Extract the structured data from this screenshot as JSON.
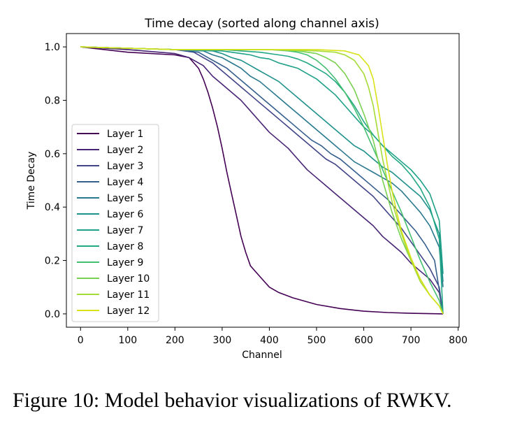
{
  "caption": "Figure 10: Model behavior visualizations of RWKV.",
  "chart_data": {
    "type": "line",
    "title": "Time decay (sorted along channel axis)",
    "xlabel": "Channel",
    "ylabel": "Time Decay",
    "xlim": [
      -30,
      802
    ],
    "ylim": [
      -0.05,
      1.05
    ],
    "xticks": [
      0,
      100,
      200,
      300,
      400,
      500,
      600,
      700,
      800
    ],
    "yticks": [
      0.0,
      0.2,
      0.4,
      0.6,
      0.8,
      1.0
    ],
    "grid": false,
    "legend_position": "center-left",
    "series": [
      {
        "name": "Layer 1",
        "color": "#440154",
        "x": [
          0,
          100,
          200,
          230,
          250,
          260,
          270,
          280,
          290,
          300,
          310,
          320,
          330,
          340,
          350,
          360,
          380,
          400,
          420,
          450,
          500,
          550,
          600,
          650,
          700,
          768
        ],
        "y": [
          1.0,
          0.98,
          0.97,
          0.96,
          0.92,
          0.88,
          0.83,
          0.77,
          0.7,
          0.62,
          0.53,
          0.45,
          0.37,
          0.29,
          0.23,
          0.18,
          0.14,
          0.1,
          0.08,
          0.06,
          0.035,
          0.02,
          0.01,
          0.005,
          0.002,
          0.0
        ]
      },
      {
        "name": "Layer 2",
        "color": "#482475",
        "x": [
          0,
          100,
          200,
          230,
          260,
          280,
          300,
          320,
          340,
          360,
          380,
          400,
          420,
          440,
          460,
          480,
          500,
          520,
          540,
          560,
          580,
          600,
          620,
          640,
          660,
          680,
          700,
          720,
          740,
          760,
          768
        ],
        "y": [
          1.0,
          0.99,
          0.975,
          0.96,
          0.93,
          0.89,
          0.86,
          0.83,
          0.8,
          0.76,
          0.72,
          0.68,
          0.65,
          0.62,
          0.58,
          0.54,
          0.51,
          0.48,
          0.45,
          0.42,
          0.39,
          0.36,
          0.33,
          0.29,
          0.26,
          0.23,
          0.19,
          0.16,
          0.13,
          0.08,
          0.0
        ]
      },
      {
        "name": "Layer 3",
        "color": "#414487",
        "x": [
          0,
          100,
          200,
          240,
          260,
          280,
          300,
          320,
          340,
          360,
          380,
          400,
          420,
          440,
          460,
          480,
          500,
          520,
          540,
          560,
          580,
          600,
          620,
          640,
          660,
          680,
          700,
          720,
          740,
          760,
          768
        ],
        "y": [
          1.0,
          0.995,
          0.99,
          0.98,
          0.96,
          0.94,
          0.91,
          0.88,
          0.85,
          0.82,
          0.79,
          0.76,
          0.73,
          0.7,
          0.67,
          0.64,
          0.61,
          0.58,
          0.56,
          0.53,
          0.5,
          0.47,
          0.44,
          0.4,
          0.36,
          0.32,
          0.27,
          0.22,
          0.17,
          0.1,
          0.0
        ]
      },
      {
        "name": "Layer 4",
        "color": "#355f8d",
        "x": [
          0,
          100,
          200,
          250,
          270,
          290,
          310,
          330,
          350,
          370,
          390,
          410,
          430,
          450,
          470,
          490,
          510,
          530,
          550,
          570,
          590,
          610,
          630,
          650,
          670,
          690,
          710,
          730,
          750,
          768
        ],
        "y": [
          1.0,
          0.995,
          0.99,
          0.98,
          0.96,
          0.94,
          0.92,
          0.89,
          0.86,
          0.83,
          0.8,
          0.77,
          0.74,
          0.71,
          0.68,
          0.65,
          0.63,
          0.6,
          0.58,
          0.55,
          0.52,
          0.49,
          0.46,
          0.43,
          0.39,
          0.35,
          0.31,
          0.26,
          0.2,
          0.0
        ]
      },
      {
        "name": "Layer 5",
        "color": "#2a788e",
        "x": [
          0,
          100,
          200,
          260,
          280,
          300,
          320,
          340,
          360,
          380,
          400,
          420,
          440,
          460,
          480,
          500,
          520,
          540,
          560,
          580,
          600,
          620,
          640,
          660,
          680,
          700,
          720,
          740,
          760,
          768
        ],
        "y": [
          1.0,
          0.995,
          0.99,
          0.985,
          0.97,
          0.96,
          0.94,
          0.92,
          0.89,
          0.87,
          0.84,
          0.81,
          0.78,
          0.75,
          0.72,
          0.69,
          0.66,
          0.63,
          0.6,
          0.57,
          0.55,
          0.53,
          0.51,
          0.49,
          0.46,
          0.42,
          0.38,
          0.33,
          0.25,
          0.1
        ]
      },
      {
        "name": "Layer 6",
        "color": "#21918c",
        "x": [
          0,
          100,
          200,
          280,
          300,
          320,
          340,
          360,
          380,
          400,
          420,
          440,
          460,
          480,
          500,
          520,
          540,
          560,
          580,
          600,
          620,
          640,
          660,
          680,
          700,
          720,
          740,
          760,
          768
        ],
        "y": [
          1.0,
          0.995,
          0.99,
          0.985,
          0.975,
          0.96,
          0.95,
          0.93,
          0.91,
          0.89,
          0.87,
          0.84,
          0.81,
          0.78,
          0.75,
          0.72,
          0.69,
          0.66,
          0.63,
          0.61,
          0.58,
          0.55,
          0.53,
          0.5,
          0.47,
          0.44,
          0.39,
          0.3,
          0.12
        ]
      },
      {
        "name": "Layer 7",
        "color": "#1fa088",
        "x": [
          0,
          100,
          200,
          300,
          320,
          340,
          360,
          380,
          400,
          420,
          440,
          460,
          480,
          500,
          520,
          540,
          560,
          580,
          600,
          620,
          640,
          660,
          680,
          700,
          720,
          740,
          760,
          768
        ],
        "y": [
          1.0,
          0.995,
          0.99,
          0.985,
          0.98,
          0.975,
          0.97,
          0.96,
          0.955,
          0.94,
          0.93,
          0.92,
          0.9,
          0.88,
          0.85,
          0.82,
          0.78,
          0.74,
          0.7,
          0.67,
          0.63,
          0.6,
          0.57,
          0.54,
          0.5,
          0.45,
          0.35,
          0.15
        ]
      },
      {
        "name": "Layer 8",
        "color": "#22a884",
        "x": [
          0,
          100,
          200,
          300,
          340,
          380,
          420,
          440,
          460,
          480,
          500,
          520,
          540,
          560,
          580,
          600,
          620,
          640,
          660,
          680,
          700,
          720,
          740,
          760,
          768
        ],
        "y": [
          1.0,
          0.995,
          0.99,
          0.99,
          0.985,
          0.98,
          0.97,
          0.965,
          0.955,
          0.94,
          0.92,
          0.9,
          0.87,
          0.83,
          0.78,
          0.72,
          0.67,
          0.63,
          0.59,
          0.56,
          0.52,
          0.47,
          0.4,
          0.28,
          0.0
        ]
      },
      {
        "name": "Layer 9",
        "color": "#44bf70",
        "x": [
          0,
          100,
          200,
          300,
          400,
          440,
          460,
          480,
          500,
          520,
          540,
          560,
          580,
          600,
          610,
          620,
          630,
          640,
          650,
          660,
          680,
          700,
          720,
          740,
          760,
          768
        ],
        "y": [
          1.0,
          0.995,
          0.99,
          0.99,
          0.99,
          0.985,
          0.98,
          0.97,
          0.95,
          0.92,
          0.88,
          0.83,
          0.77,
          0.7,
          0.66,
          0.62,
          0.58,
          0.54,
          0.5,
          0.46,
          0.38,
          0.29,
          0.2,
          0.12,
          0.05,
          0.0
        ]
      },
      {
        "name": "Layer 10",
        "color": "#7ad151",
        "x": [
          0,
          100,
          200,
          300,
          400,
          460,
          480,
          500,
          520,
          540,
          560,
          580,
          600,
          610,
          620,
          630,
          640,
          650,
          660,
          670,
          680,
          700,
          720,
          740,
          760,
          768
        ],
        "y": [
          1.0,
          0.995,
          0.99,
          0.99,
          0.99,
          0.985,
          0.98,
          0.975,
          0.96,
          0.94,
          0.9,
          0.84,
          0.75,
          0.7,
          0.65,
          0.58,
          0.5,
          0.44,
          0.38,
          0.33,
          0.28,
          0.2,
          0.13,
          0.07,
          0.03,
          0.0
        ]
      },
      {
        "name": "Layer 11",
        "color": "#a5db36",
        "x": [
          0,
          100,
          200,
          300,
          400,
          500,
          540,
          560,
          580,
          600,
          610,
          620,
          630,
          640,
          650,
          660,
          670,
          680,
          700,
          720,
          740,
          760,
          768
        ],
        "y": [
          1.0,
          0.995,
          0.99,
          0.99,
          0.99,
          0.985,
          0.98,
          0.97,
          0.95,
          0.9,
          0.85,
          0.78,
          0.68,
          0.58,
          0.5,
          0.42,
          0.36,
          0.3,
          0.2,
          0.12,
          0.07,
          0.03,
          0.0
        ]
      },
      {
        "name": "Layer 12",
        "color": "#d8e219",
        "x": [
          0,
          100,
          200,
          300,
          400,
          500,
          560,
          590,
          610,
          620,
          630,
          640,
          650,
          660,
          670,
          680,
          700,
          720,
          740,
          760,
          768
        ],
        "y": [
          1.0,
          0.995,
          0.99,
          0.99,
          0.99,
          0.99,
          0.985,
          0.97,
          0.93,
          0.88,
          0.78,
          0.67,
          0.56,
          0.46,
          0.38,
          0.31,
          0.21,
          0.13,
          0.07,
          0.03,
          0.0
        ]
      }
    ]
  }
}
